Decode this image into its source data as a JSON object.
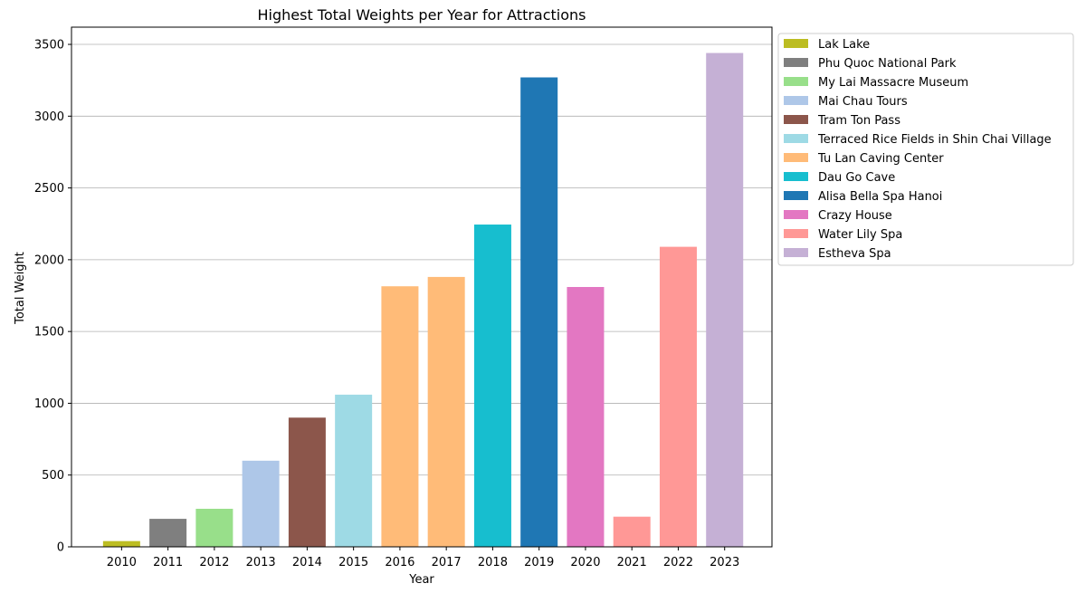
{
  "chart_data": {
    "type": "bar",
    "title": "Highest Total Weights per Year for Attractions",
    "xlabel": "Year",
    "ylabel": "Total Weight",
    "categories": [
      "2010",
      "2011",
      "2012",
      "2013",
      "2014",
      "2015",
      "2016",
      "2017",
      "2018",
      "2019",
      "2020",
      "2021",
      "2022",
      "2023"
    ],
    "values": [
      40,
      195,
      265,
      600,
      900,
      1060,
      1815,
      1880,
      2245,
      3270,
      1810,
      210,
      2090,
      3440
    ],
    "bar_attraction": [
      "Lak Lake",
      "Phu Quoc National Park",
      "My Lai Massacre Museum",
      "Mai Chau Tours",
      "Tram Ton Pass",
      "Terraced Rice Fields in Shin Chai Village",
      "Tu Lan Caving Center",
      "Tu Lan Caving Center",
      "Dau Go Cave",
      "Alisa Bella Spa Hanoi",
      "Crazy House",
      "Water Lily Spa",
      "Water Lily Spa",
      "Estheva Spa"
    ],
    "ylim": [
      0,
      3620
    ],
    "yticks": [
      0,
      500,
      1000,
      1500,
      2000,
      2500,
      3000,
      3500
    ],
    "grid": "y-axis horizontal lines",
    "legend_position": "outside top-right",
    "legend": [
      {
        "name": "Lak Lake",
        "color": "#bcbd22"
      },
      {
        "name": "Phu Quoc National Park",
        "color": "#7f7f7f"
      },
      {
        "name": "My Lai Massacre Museum",
        "color": "#98df8a"
      },
      {
        "name": "Mai Chau Tours",
        "color": "#aec7e8"
      },
      {
        "name": "Tram Ton Pass",
        "color": "#8c564b"
      },
      {
        "name": "Terraced Rice Fields in Shin Chai Village",
        "color": "#9edae5"
      },
      {
        "name": "Tu Lan Caving Center",
        "color": "#ffbb78"
      },
      {
        "name": "Dau Go Cave",
        "color": "#17becf"
      },
      {
        "name": "Alisa Bella Spa Hanoi",
        "color": "#1f77b4"
      },
      {
        "name": "Crazy House",
        "color": "#e377c2"
      },
      {
        "name": "Water Lily Spa",
        "color": "#ff9896"
      },
      {
        "name": "Estheva Spa",
        "color": "#c5b0d5"
      }
    ]
  }
}
